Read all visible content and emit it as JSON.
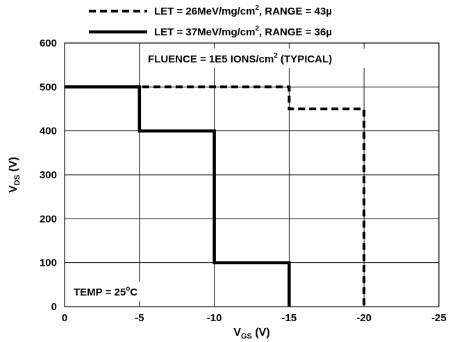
{
  "chart_data": {
    "type": "line",
    "title": "",
    "xlabel": {
      "main": "V",
      "sub": "GS",
      "rest": " (V)"
    },
    "ylabel": {
      "main": "V",
      "sub": "DS",
      "rest": " (V)"
    },
    "xlim": [
      0,
      -25
    ],
    "ylim": [
      0,
      600
    ],
    "x_ticks": [
      0,
      -5,
      -10,
      -15,
      -20,
      -25
    ],
    "y_ticks": [
      0,
      100,
      200,
      300,
      400,
      500,
      600
    ],
    "grid": true,
    "legend_position": "top",
    "annotations": {
      "fluence": {
        "prefix": "FLUENCE = 1E5 IONS/cm",
        "sup": "2",
        "suffix": " (TYPICAL)"
      },
      "temp": {
        "prefix": "TEMP = 25",
        "sup": "o",
        "suffix": "C"
      }
    },
    "series": [
      {
        "name": "LET = 26MeV/mg/cm2, RANGE = 43µ",
        "legend": {
          "prefix": "LET = 26MeV/mg/cm",
          "sup": "2",
          "suffix": ", RANGE = 43µ"
        },
        "style": "dashed",
        "x": [
          0,
          -15,
          -15,
          -20,
          -20
        ],
        "y": [
          500,
          500,
          450,
          450,
          0
        ]
      },
      {
        "name": "LET = 37MeV/mg/cm2, RANGE = 36µ",
        "legend": {
          "prefix": "LET = 37MeV/mg/cm",
          "sup": "2",
          "suffix": ", RANGE = 36µ"
        },
        "style": "solid",
        "x": [
          0,
          -5,
          -5,
          -10,
          -10,
          -15,
          -15
        ],
        "y": [
          500,
          500,
          400,
          400,
          100,
          100,
          0
        ]
      }
    ]
  }
}
